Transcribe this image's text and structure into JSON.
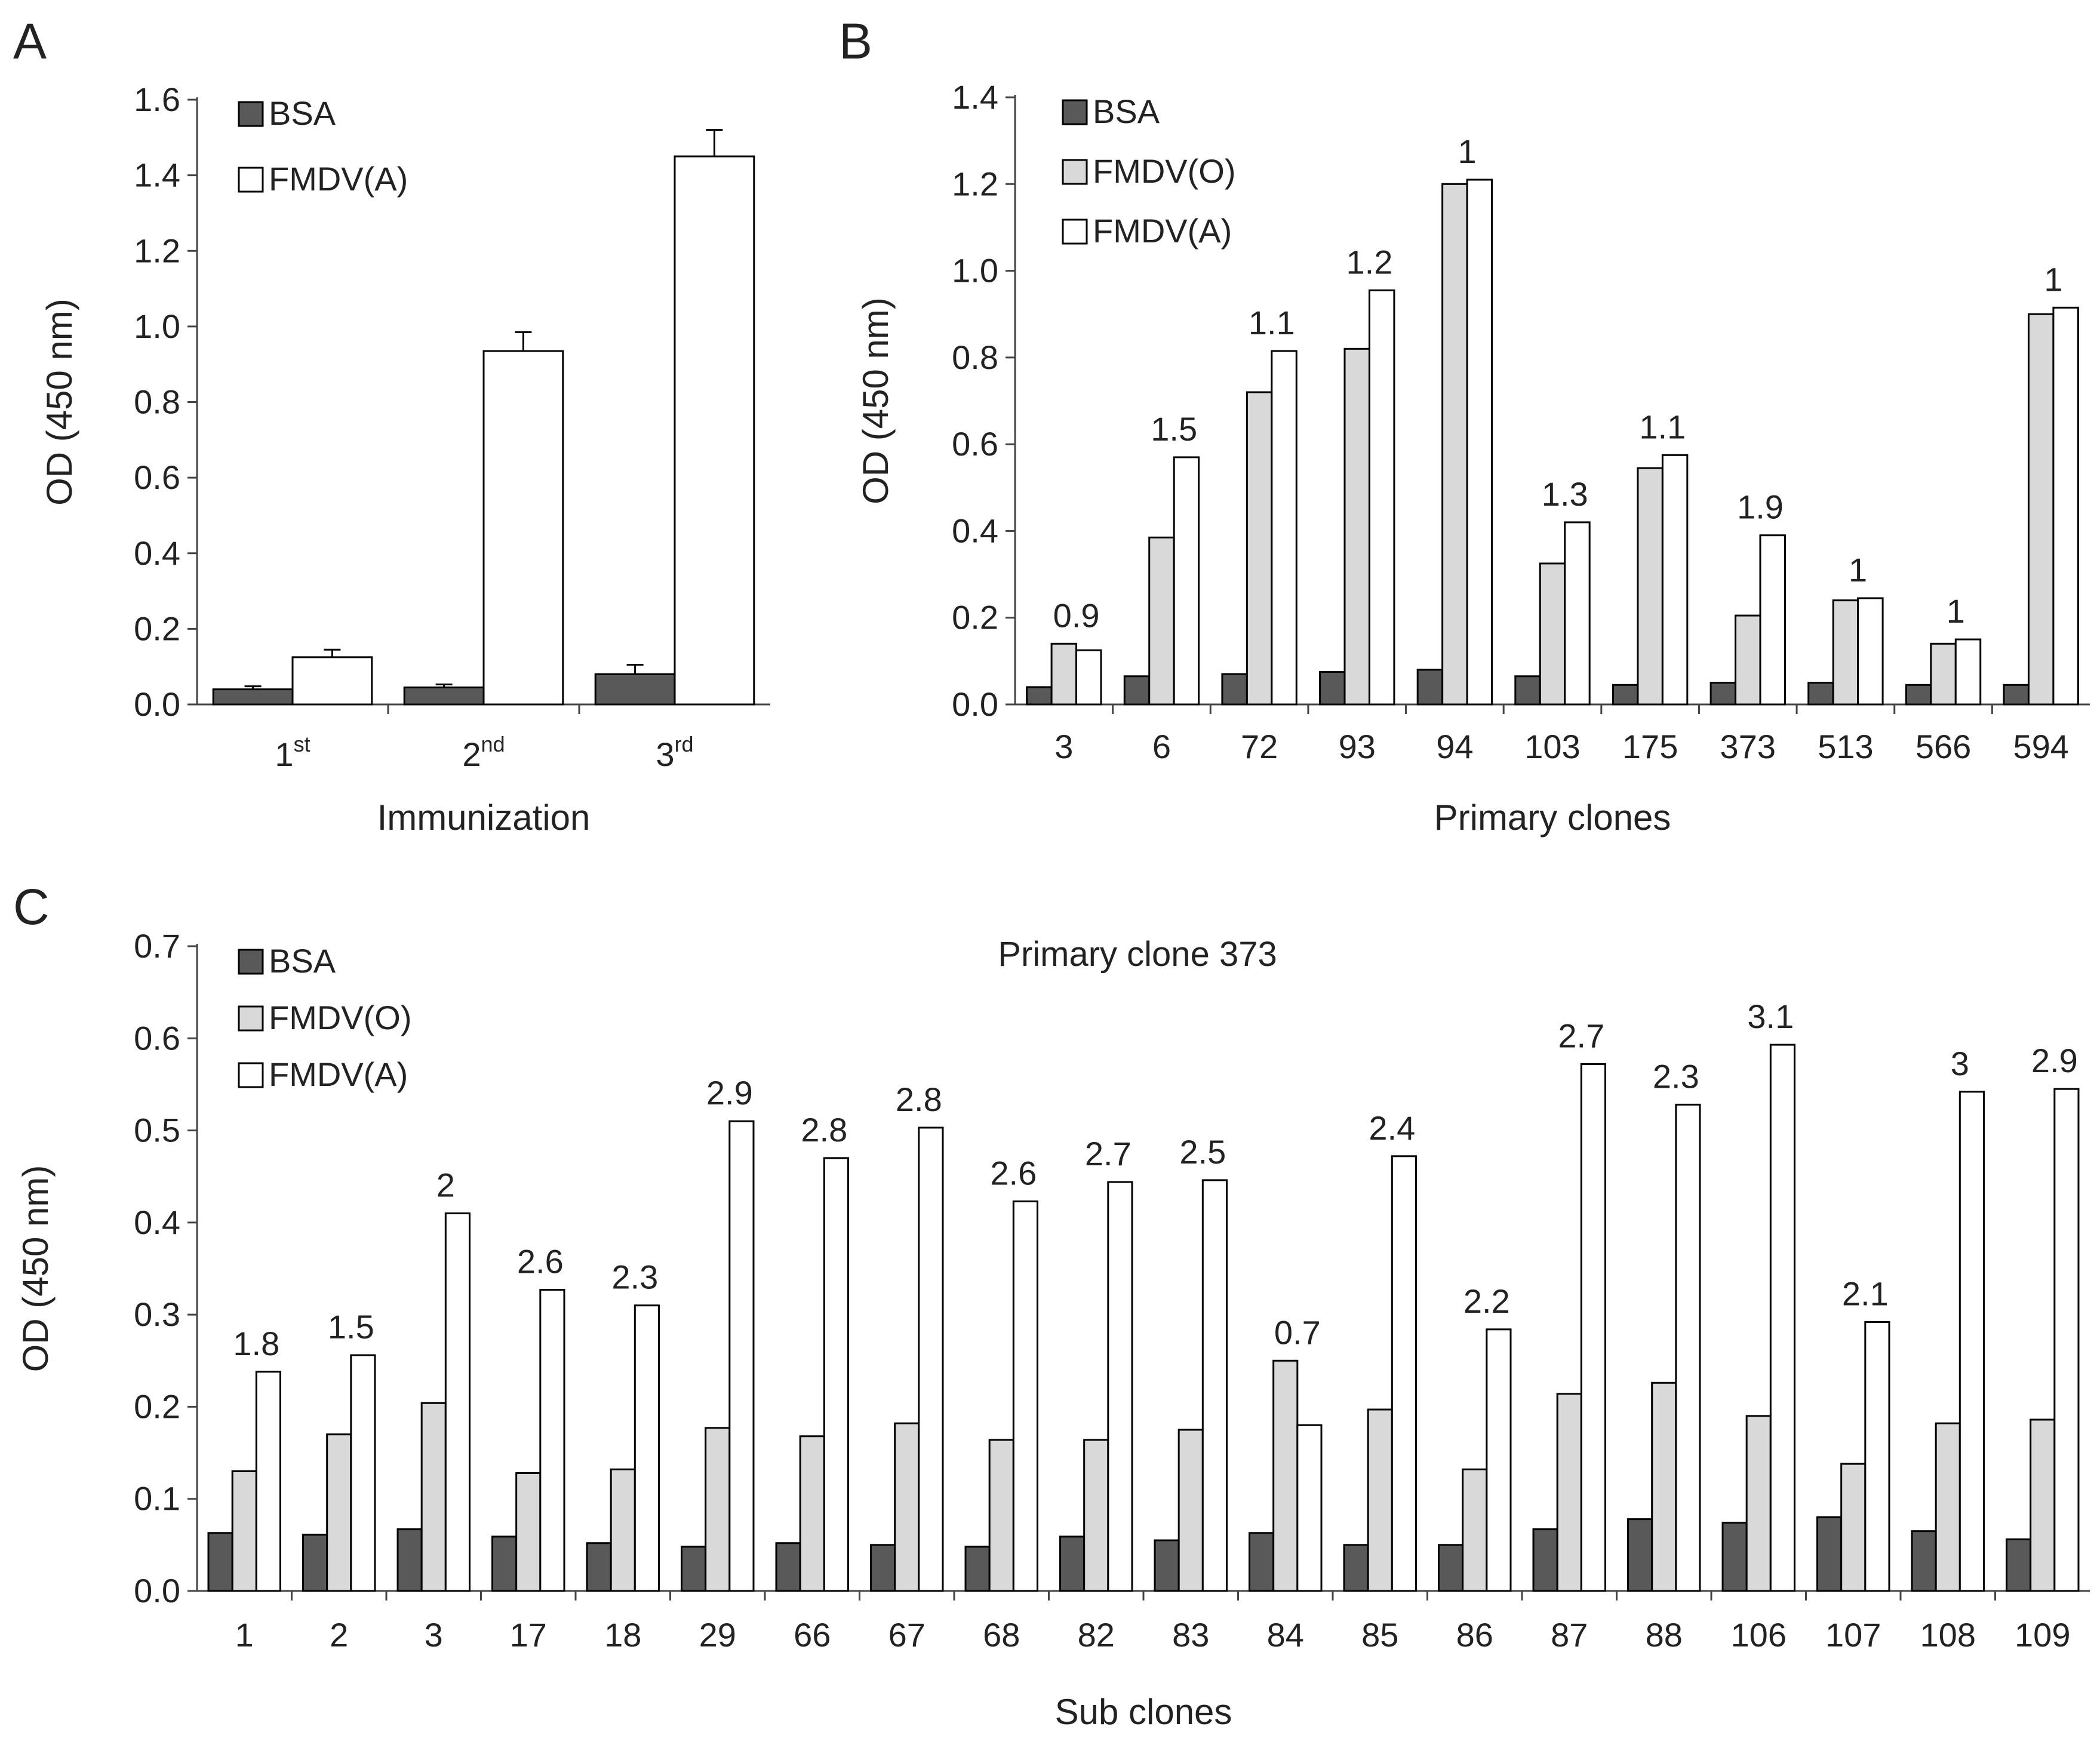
{
  "colors": {
    "bsa": "#595959",
    "fmdv_o": "#d9d9d9",
    "fmdv_a": "#ffffff",
    "stroke": "#000000",
    "axis": "#444444"
  },
  "chart_data": [
    {
      "panel": "A",
      "type": "bar",
      "title": "",
      "xlabel": "Immunization",
      "ylabel": "OD (450 nm)",
      "ylim": [
        0,
        1.6
      ],
      "yticks": [
        "0.0",
        "0.2",
        "0.4",
        "0.6",
        "0.8",
        "1.0",
        "1.2",
        "1.4",
        "1.6"
      ],
      "categories": [
        {
          "base": "1",
          "sup": "st"
        },
        {
          "base": "2",
          "sup": "nd"
        },
        {
          "base": "3",
          "sup": "rd"
        }
      ],
      "series": [
        {
          "name": "BSA",
          "color_key": "bsa",
          "values": [
            0.04,
            0.045,
            0.08
          ],
          "errors": [
            0.008,
            0.008,
            0.025
          ]
        },
        {
          "name": "FMDV(A)",
          "color_key": "fmdv_a",
          "values": [
            0.125,
            0.935,
            1.45
          ],
          "errors": [
            0.02,
            0.05,
            0.07
          ]
        }
      ],
      "legend": [
        "BSA",
        "FMDV(A)"
      ],
      "legend_position": "top-left"
    },
    {
      "panel": "B",
      "type": "bar",
      "title": "",
      "xlabel": "Primary clones",
      "ylabel": "OD (450 nm)",
      "ylim": [
        0,
        1.4
      ],
      "yticks": [
        "0.0",
        "0.2",
        "0.4",
        "0.6",
        "0.8",
        "1.0",
        "1.2",
        "1.4"
      ],
      "categories": [
        "3",
        "6",
        "72",
        "93",
        "94",
        "103",
        "175",
        "373",
        "513",
        "566",
        "594"
      ],
      "series": [
        {
          "name": "BSA",
          "color_key": "bsa",
          "values": [
            0.04,
            0.065,
            0.07,
            0.075,
            0.08,
            0.065,
            0.045,
            0.05,
            0.05,
            0.045,
            0.045
          ]
        },
        {
          "name": "FMDV(O)",
          "color_key": "fmdv_o",
          "values": [
            0.14,
            0.385,
            0.72,
            0.82,
            1.2,
            0.325,
            0.545,
            0.205,
            0.24,
            0.14,
            0.9
          ]
        },
        {
          "name": "FMDV(A)",
          "color_key": "fmdv_a",
          "values": [
            0.125,
            0.57,
            0.815,
            0.955,
            1.21,
            0.42,
            0.575,
            0.39,
            0.245,
            0.15,
            0.915
          ]
        }
      ],
      "annotations": [
        "0.9",
        "1.5",
        "1.1",
        "1.2",
        "1",
        "1.3",
        "1.1",
        "1.9",
        "1",
        "1",
        "1"
      ],
      "legend": [
        "BSA",
        "FMDV(O)",
        "FMDV(A)"
      ],
      "legend_position": "top-left"
    },
    {
      "panel": "C",
      "type": "bar",
      "title": "Primary clone 373",
      "xlabel": "Sub clones",
      "ylabel": "OD (450 nm)",
      "ylim": [
        0,
        0.7
      ],
      "yticks": [
        "0.0",
        "0.1",
        "0.2",
        "0.3",
        "0.4",
        "0.5",
        "0.6",
        "0.7"
      ],
      "categories": [
        "1",
        "2",
        "3",
        "17",
        "18",
        "29",
        "66",
        "67",
        "68",
        "82",
        "83",
        "84",
        "85",
        "86",
        "87",
        "88",
        "106",
        "107",
        "108",
        "109"
      ],
      "series": [
        {
          "name": "BSA",
          "color_key": "bsa",
          "values": [
            0.063,
            0.061,
            0.067,
            0.059,
            0.052,
            0.048,
            0.052,
            0.05,
            0.048,
            0.059,
            0.055,
            0.063,
            0.05,
            0.05,
            0.067,
            0.078,
            0.074,
            0.08,
            0.065,
            0.056
          ]
        },
        {
          "name": "FMDV(O)",
          "color_key": "fmdv_o",
          "values": [
            0.13,
            0.17,
            0.204,
            0.128,
            0.132,
            0.177,
            0.168,
            0.182,
            0.164,
            0.164,
            0.175,
            0.25,
            0.197,
            0.132,
            0.214,
            0.226,
            0.19,
            0.138,
            0.182,
            0.186
          ]
        },
        {
          "name": "FMDV(A)",
          "color_key": "fmdv_a",
          "values": [
            0.238,
            0.256,
            0.41,
            0.327,
            0.31,
            0.51,
            0.47,
            0.503,
            0.423,
            0.444,
            0.446,
            0.18,
            0.472,
            0.284,
            0.572,
            0.528,
            0.593,
            0.292,
            0.542,
            0.545
          ]
        }
      ],
      "annotations": [
        "1.8",
        "1.5",
        "2",
        "2.6",
        "2.3",
        "2.9",
        "2.8",
        "2.8",
        "2.6",
        "2.7",
        "2.5",
        "0.7",
        "2.4",
        "2.2",
        "2.7",
        "2.3",
        "3.1",
        "2.1",
        "3",
        "2.9"
      ],
      "legend": [
        "BSA",
        "FMDV(O)",
        "FMDV(A)"
      ],
      "legend_position": "top-left"
    }
  ]
}
